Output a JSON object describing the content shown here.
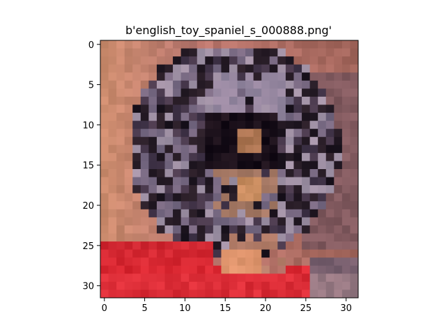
{
  "chart_data": {
    "type": "heatmap",
    "title": "b'english_toy_spaniel_s_000888.png'",
    "xlabel": "",
    "ylabel": "",
    "xlim": [
      -0.5,
      31.5
    ],
    "ylim": [
      31.5,
      -0.5
    ],
    "x_ticks": [
      0,
      5,
      10,
      15,
      20,
      25,
      30
    ],
    "y_ticks": [
      0,
      5,
      10,
      15,
      20,
      25,
      30
    ],
    "x_tick_labels": [
      "0",
      "5",
      "10",
      "15",
      "20",
      "25",
      "30"
    ],
    "y_tick_labels": [
      "0",
      "5",
      "10",
      "15",
      "20",
      "25",
      "30"
    ],
    "grid": false,
    "legend": "none",
    "image_size": [
      32,
      32
    ],
    "image_description": "low-resolution photo of a black, white and tan English toy spaniel on a red surface against a pink-tan background"
  }
}
